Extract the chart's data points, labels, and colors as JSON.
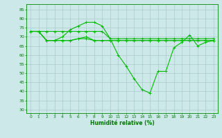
{
  "xlabel": "Humidité relative (%)",
  "background_color": "#cce8e8",
  "grid_color": "#aacccc",
  "line_color": "#00bb00",
  "xlim": [
    -0.5,
    23.5
  ],
  "ylim": [
    28,
    88
  ],
  "yticks": [
    30,
    35,
    40,
    45,
    50,
    55,
    60,
    65,
    70,
    75,
    80,
    85
  ],
  "xticks": [
    0,
    1,
    2,
    3,
    4,
    5,
    6,
    7,
    8,
    9,
    10,
    11,
    12,
    13,
    14,
    15,
    16,
    17,
    18,
    19,
    20,
    21,
    22,
    23
  ],
  "series": [
    [
      73,
      73,
      73,
      73,
      73,
      73,
      73,
      73,
      73,
      73,
      69,
      69,
      69,
      69,
      69,
      69,
      69,
      69,
      69,
      69,
      69,
      69,
      69,
      69
    ],
    [
      73,
      73,
      68,
      68,
      68,
      68,
      69,
      69,
      68,
      68,
      68,
      68,
      68,
      68,
      68,
      68,
      68,
      68,
      68,
      68,
      68,
      68,
      68,
      68
    ],
    [
      73,
      73,
      68,
      68,
      68,
      68,
      69,
      70,
      68,
      68,
      68,
      68,
      68,
      68,
      68,
      68,
      68,
      68,
      68,
      68,
      68,
      68,
      68,
      68
    ],
    [
      73,
      73,
      68,
      68,
      70,
      74,
      76,
      78,
      78,
      76,
      69,
      60,
      54,
      47,
      41,
      39,
      51,
      51,
      64,
      67,
      71,
      65,
      67,
      68
    ]
  ]
}
